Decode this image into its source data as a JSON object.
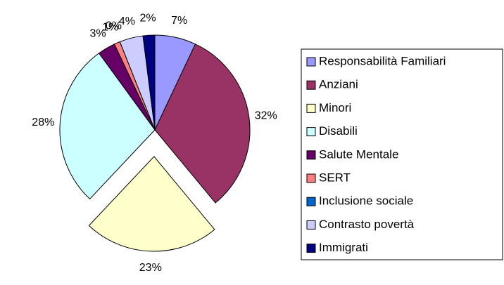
{
  "chart_data": {
    "type": "pie",
    "categories": [
      "Responsabilità Familiari",
      "Anziani",
      "Minori",
      "Disabili",
      "Salute Mentale",
      "SERT",
      "Inclusione sociale",
      "Contrasto povertà",
      "Immigrati"
    ],
    "values": [
      7,
      32,
      23,
      28,
      3,
      1,
      0,
      4,
      2
    ],
    "value_labels": [
      "7%",
      "32%",
      "23%",
      "28%",
      "3%",
      "1%",
      "0%",
      "4%",
      "2%"
    ],
    "colors": [
      "#9999ff",
      "#993366",
      "#ffffcc",
      "#ccffff",
      "#660066",
      "#ff8080",
      "#0066cc",
      "#ccccff",
      "#000080"
    ],
    "exploded": "Minori",
    "legend": "right"
  }
}
